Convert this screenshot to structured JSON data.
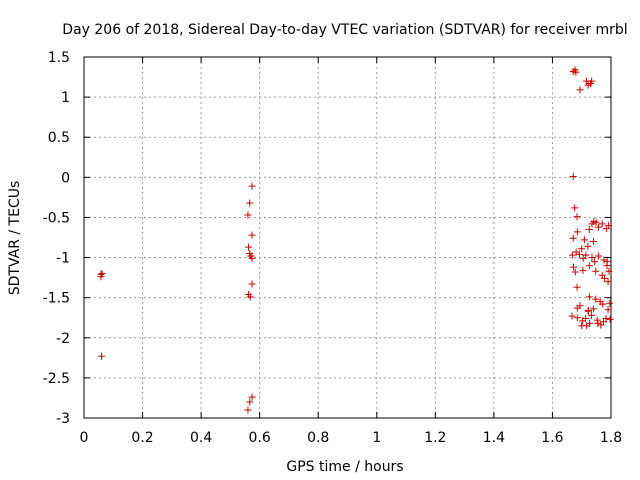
{
  "chart_data": {
    "type": "scatter",
    "title": "Day 206 of 2018, Sidereal Day-to-day VTEC variation (SDTVAR) for receiver mrbl",
    "xlabel": "GPS time / hours",
    "ylabel": "SDTVAR / TECUs",
    "xlim": [
      0,
      1.8
    ],
    "ylim": [
      -3,
      1.5
    ],
    "xticks": [
      "0",
      "0.2",
      "0.4",
      "0.6",
      "0.8",
      "1",
      "1.2",
      "1.4",
      "1.6",
      "1.8"
    ],
    "yticks": [
      "1.5",
      "1",
      "0.5",
      "0",
      "-0.5",
      "-1",
      "-1.5",
      "-2",
      "-2.5",
      "-3"
    ],
    "grid": true,
    "marker": "+",
    "color": "#cc0000",
    "points": [
      [
        0.058,
        -1.21
      ],
      [
        0.058,
        -1.24
      ],
      [
        0.062,
        -1.2
      ],
      [
        0.06,
        -2.23
      ],
      [
        0.574,
        -0.11
      ],
      [
        0.566,
        -0.32
      ],
      [
        0.56,
        -0.47
      ],
      [
        0.574,
        -0.72
      ],
      [
        0.562,
        -0.87
      ],
      [
        0.566,
        -0.95
      ],
      [
        0.57,
        -0.98
      ],
      [
        0.574,
        -1.01
      ],
      [
        0.574,
        -1.33
      ],
      [
        0.562,
        -1.46
      ],
      [
        0.568,
        -1.49
      ],
      [
        0.574,
        -2.74
      ],
      [
        0.566,
        -2.8
      ],
      [
        0.56,
        -2.9
      ],
      [
        1.671,
        1.32
      ],
      [
        1.68,
        1.31
      ],
      [
        1.677,
        1.34
      ],
      [
        1.716,
        1.2
      ],
      [
        1.734,
        1.2
      ],
      [
        1.722,
        1.15
      ],
      [
        1.73,
        1.17
      ],
      [
        1.694,
        1.09
      ],
      [
        1.671,
        0.01
      ],
      [
        1.676,
        -0.38
      ],
      [
        1.684,
        -0.49
      ],
      [
        1.741,
        -0.55
      ],
      [
        1.749,
        -0.56
      ],
      [
        1.726,
        -0.65
      ],
      [
        1.735,
        -0.58
      ],
      [
        1.757,
        -0.62
      ],
      [
        1.77,
        -0.58
      ],
      [
        1.785,
        -0.64
      ],
      [
        1.792,
        -0.6
      ],
      [
        1.671,
        -0.76
      ],
      [
        1.685,
        -0.68
      ],
      [
        1.709,
        -0.78
      ],
      [
        1.74,
        -0.8
      ],
      [
        1.721,
        -0.86
      ],
      [
        1.7,
        -0.89
      ],
      [
        1.681,
        -0.93
      ],
      [
        1.668,
        -0.97
      ],
      [
        1.692,
        -0.96
      ],
      [
        1.705,
        -1.01
      ],
      [
        1.714,
        -0.97
      ],
      [
        1.735,
        -1.0
      ],
      [
        1.757,
        -0.98
      ],
      [
        1.744,
        -1.05
      ],
      [
        1.776,
        -1.03
      ],
      [
        1.787,
        -1.05
      ],
      [
        1.672,
        -1.12
      ],
      [
        1.678,
        -1.18
      ],
      [
        1.704,
        -1.16
      ],
      [
        1.726,
        -1.1
      ],
      [
        1.748,
        -1.17
      ],
      [
        1.77,
        -1.22
      ],
      [
        1.786,
        -1.1
      ],
      [
        1.793,
        -1.17
      ],
      [
        1.778,
        -1.26
      ],
      [
        1.79,
        -1.3
      ],
      [
        1.684,
        -1.37
      ],
      [
        1.726,
        -1.49
      ],
      [
        1.748,
        -1.52
      ],
      [
        1.763,
        -1.55
      ],
      [
        1.772,
        -1.58
      ],
      [
        1.796,
        -1.57
      ],
      [
        1.694,
        -1.6
      ],
      [
        1.685,
        -1.63
      ],
      [
        1.723,
        -1.66
      ],
      [
        1.733,
        -1.72
      ],
      [
        1.74,
        -1.64
      ],
      [
        1.667,
        -1.73
      ],
      [
        1.685,
        -1.75
      ],
      [
        1.703,
        -1.79
      ],
      [
        1.713,
        -1.76
      ],
      [
        1.727,
        -1.82
      ],
      [
        1.755,
        -1.82
      ],
      [
        1.774,
        -1.8
      ],
      [
        1.783,
        -1.76
      ],
      [
        1.797,
        -1.77
      ],
      [
        1.7,
        -1.85
      ],
      [
        1.717,
        -1.85
      ],
      [
        1.753,
        -1.78
      ],
      [
        1.765,
        -1.84
      ],
      [
        1.722,
        -1.67
      ],
      [
        1.79,
        -1.65
      ]
    ]
  }
}
